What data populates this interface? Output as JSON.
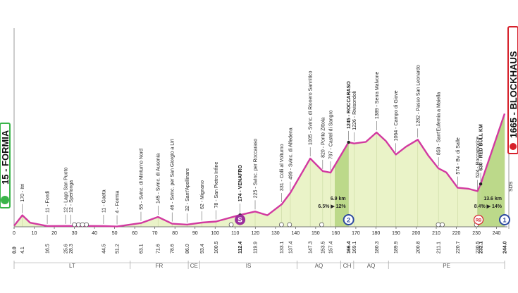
{
  "colors": {
    "profile": "#d23aa0",
    "fill": "#eaf3c8",
    "climb": "#bcd98a",
    "start": "#3ab54a",
    "finish": "#d6202a",
    "gpm_ring": "#2d4aa0",
    "sprint": "#9b2f9c"
  },
  "start": {
    "label": "15 - FORMIA"
  },
  "finish": {
    "label": "1665 - BLOCKHAUS",
    "side_code": "SDS"
  },
  "x_axis": {
    "ticks": [
      0,
      10,
      20,
      30,
      40,
      50,
      60,
      70,
      80,
      90,
      100,
      110,
      120,
      130,
      140,
      150,
      160,
      170,
      180,
      190,
      200,
      210,
      220,
      230,
      240
    ],
    "tick_labels": [
      "0",
      "10",
      "20",
      "30",
      "40",
      "50",
      "60",
      "70",
      "80",
      "90",
      "100",
      "110",
      "120",
      "130",
      "140",
      "150",
      "160",
      "170",
      "180",
      "190",
      "200",
      "210",
      "220",
      "230",
      "240"
    ],
    "km_markers": [
      {
        "km": 0.0,
        "label": "0.0",
        "bold": true
      },
      {
        "km": 4.1,
        "label": "4.1"
      },
      {
        "km": 16.5,
        "label": "16.5"
      },
      {
        "km": 25.6,
        "label": "25.6"
      },
      {
        "km": 28.3,
        "label": "28.3"
      },
      {
        "km": 44.5,
        "label": "44.5"
      },
      {
        "km": 51.2,
        "label": "51.2"
      },
      {
        "km": 63.1,
        "label": "63.1"
      },
      {
        "km": 71.6,
        "label": "71.6"
      },
      {
        "km": 78.6,
        "label": "78.6"
      },
      {
        "km": 86.0,
        "label": "86.0"
      },
      {
        "km": 93.4,
        "label": "93.4"
      },
      {
        "km": 100.5,
        "label": "100.5"
      },
      {
        "km": 112.4,
        "label": "112.4",
        "bold": true
      },
      {
        "km": 119.9,
        "label": "119.9"
      },
      {
        "km": 133.1,
        "label": "133.1"
      },
      {
        "km": 137.4,
        "label": "137.4"
      },
      {
        "km": 147.3,
        "label": "147.3"
      },
      {
        "km": 153.5,
        "label": "153.5"
      },
      {
        "km": 157.4,
        "label": "157.4"
      },
      {
        "km": 166.4,
        "label": "166.4",
        "bold": true
      },
      {
        "km": 169.1,
        "label": "169.1"
      },
      {
        "km": 180.3,
        "label": "180.3"
      },
      {
        "km": 189.9,
        "label": "189.9"
      },
      {
        "km": 200.8,
        "label": "200.8"
      },
      {
        "km": 211.1,
        "label": "211.1"
      },
      {
        "km": 220.7,
        "label": "220.7"
      },
      {
        "km": 230.5,
        "label": "230.5"
      },
      {
        "km": 232.1,
        "label": "232.1",
        "bold": true
      },
      {
        "km": 244.0,
        "label": "244.0",
        "bold": true
      }
    ]
  },
  "regions": [
    {
      "label": "LT",
      "from": 0,
      "to": 80
    },
    {
      "label": "FR",
      "from": 80,
      "to": 120
    },
    {
      "label": "CE",
      "from": 120,
      "to": 128
    },
    {
      "label": "IS",
      "from": 128,
      "to": 195
    },
    {
      "label": "AQ",
      "from": 195,
      "to": 225
    },
    {
      "label": "CH",
      "from": 225,
      "to": 234
    },
    {
      "label": "AQ",
      "from": 234,
      "to": 258
    },
    {
      "label": "PE",
      "from": 258,
      "to": 338
    }
  ],
  "waypoints": [
    {
      "km": 4.1,
      "label": "170 - Itri"
    },
    {
      "km": 16.5,
      "label": "11 - Fondi"
    },
    {
      "km": 25.6,
      "label": "12 - Lago San Puoto"
    },
    {
      "km": 28.3,
      "label": "12 - Sperlonga"
    },
    {
      "km": 44.5,
      "label": "11 - Gaeta"
    },
    {
      "km": 51.2,
      "label": "4 - Formia"
    },
    {
      "km": 63.1,
      "label": "55 - Svinc. di Minturno Nord"
    },
    {
      "km": 71.6,
      "label": "145 - Svinc. di Ausonia"
    },
    {
      "km": 78.6,
      "label": "46 - Svinc. per San Giorgio a Liri"
    },
    {
      "km": 86.0,
      "label": "32 - Sant'Apollinare"
    },
    {
      "km": 93.4,
      "label": "62 - Mignano"
    },
    {
      "km": 100.5,
      "label": "78 - San Pietro Infine"
    },
    {
      "km": 112.4,
      "label": "174 - VENAFRO",
      "bold": true
    },
    {
      "km": 119.9,
      "label": "225 - Svinc. per Roccaraso"
    },
    {
      "km": 133.1,
      "label": "331 - Colli al Volturno"
    },
    {
      "km": 137.4,
      "label": "499 - Svinc. di Alfedena"
    },
    {
      "km": 147.3,
      "label": "1005 - Svinc. di Rionero Sannitico"
    },
    {
      "km": 153.5,
      "label": "820 - Ponte Zittola"
    },
    {
      "km": 157.4,
      "label": "797 - Castel di Sangro"
    },
    {
      "km": 166.4,
      "label": "1245 - ROCCARASO",
      "bold": true
    },
    {
      "km": 169.1,
      "label": "1226 - Rivisondoli"
    },
    {
      "km": 180.3,
      "label": "1389 - Serra Malvone"
    },
    {
      "km": 189.9,
      "label": "1064 - Campo di Giove"
    },
    {
      "km": 200.8,
      "label": "1282 - Passo San Leonardo"
    },
    {
      "km": 211.1,
      "label": "859 - Sant'Eufemia a Maiella"
    },
    {
      "km": 220.7,
      "label": "574 - Bv. di Salle"
    },
    {
      "km": 230.5,
      "label": "524 - Roccamorice"
    },
    {
      "km": 232.1,
      "label": "630 - RED BULL KM",
      "bold": true
    }
  ],
  "profile": {
    "max_alt": 1700,
    "points": [
      [
        0,
        15
      ],
      [
        4.1,
        170
      ],
      [
        8,
        60
      ],
      [
        16.5,
        11
      ],
      [
        25.6,
        12
      ],
      [
        28.3,
        12
      ],
      [
        44.5,
        11
      ],
      [
        51.2,
        4
      ],
      [
        63.1,
        55
      ],
      [
        71.6,
        145
      ],
      [
        78.6,
        46
      ],
      [
        86.0,
        32
      ],
      [
        93.4,
        62
      ],
      [
        100.5,
        78
      ],
      [
        112.4,
        174
      ],
      [
        119.9,
        225
      ],
      [
        126,
        170
      ],
      [
        133.1,
        331
      ],
      [
        137.4,
        499
      ],
      [
        147.3,
        1005
      ],
      [
        153.5,
        820
      ],
      [
        157.4,
        797
      ],
      [
        166.4,
        1245
      ],
      [
        169.1,
        1226
      ],
      [
        175,
        1250
      ],
      [
        180.3,
        1389
      ],
      [
        185,
        1260
      ],
      [
        189.9,
        1064
      ],
      [
        195,
        1180
      ],
      [
        200.8,
        1282
      ],
      [
        206,
        1050
      ],
      [
        211.1,
        859
      ],
      [
        215,
        800
      ],
      [
        220.7,
        574
      ],
      [
        226,
        560
      ],
      [
        230.5,
        524
      ],
      [
        232.1,
        630
      ],
      [
        244,
        1665
      ]
    ]
  },
  "climbs": [
    {
      "km": 166.4,
      "dist_label": "6.9 km",
      "grade_label": "6.5% ▶ 12%",
      "from": 159.5,
      "to": 166.4
    },
    {
      "km": 244.0,
      "dist_label": "13.6 km",
      "grade_label": "8.4% ▶ 14%",
      "from": 230.4,
      "to": 244.0
    }
  ],
  "icons": [
    {
      "km": 112.4,
      "kind": "sprint-icon",
      "label": "S"
    },
    {
      "km": 166.4,
      "kind": "gpm-icon",
      "label": "2"
    },
    {
      "km": 244.0,
      "kind": "gpm-icon",
      "label": "1"
    },
    {
      "km": 232.1,
      "kind": "redbull-icon",
      "label": "RB"
    }
  ],
  "service_icons": [
    30,
    32,
    34,
    36,
    108,
    133,
    137,
    153,
    211,
    213,
    230
  ]
}
